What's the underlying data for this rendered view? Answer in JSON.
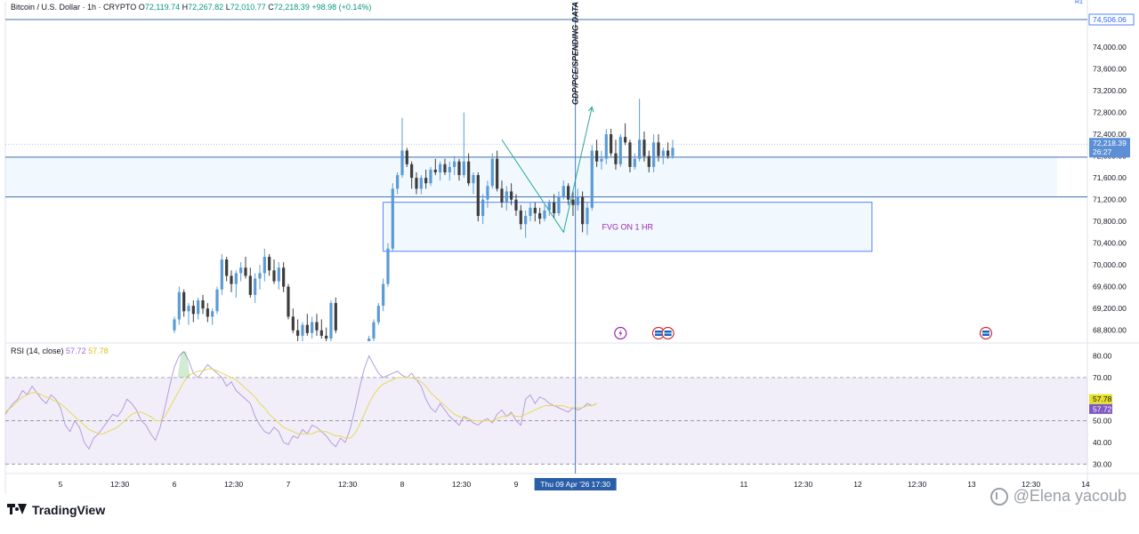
{
  "header": {
    "symbol": "Bitcoin / U.S. Dollar · 1h · CRYPTO",
    "o_label": "O",
    "o_value": "72,119.74",
    "h_label": "H",
    "h_value": "72,267.82",
    "l_label": "L",
    "l_value": "72,010.77",
    "c_label": "C",
    "c_value": "72,218.39",
    "change": "+98.98 (+0.14%)"
  },
  "rsi_legend": {
    "label": "RSI (14, close)",
    "rsi_value": "57.72",
    "ma_value": "57.78"
  },
  "brand": {
    "name": "TradingView"
  },
  "watermark": {
    "text": "@Elena yacoub"
  },
  "colors": {
    "up": "#5b9bd5",
    "down": "#3d3d3d",
    "line": "#2962ff",
    "rsi": "#b39ddb",
    "rsi_ma": "#f0e68c",
    "fvg_text": "#9c27b0",
    "badge": "#2962ff"
  },
  "chart_data": [
    {
      "type": "candlestick",
      "title": "Bitcoin / U.S. Dollar · 1h · CRYPTO",
      "ylim": [
        68600,
        74800
      ],
      "y_ticks": [
        "74,000.00",
        "73,600.00",
        "73,200.00",
        "72,800.00",
        "72,400.00",
        "72,000.00",
        "71,600.00",
        "71,200.00",
        "70,800.00",
        "70,400.00",
        "70,000.00",
        "69,600.00",
        "69,200.00",
        "68,800.00"
      ],
      "y_tick_values": [
        74000,
        73600,
        73200,
        72800,
        72400,
        72000,
        71600,
        71200,
        70800,
        70400,
        70000,
        69600,
        69200,
        68800
      ],
      "x_ticks": [
        "5",
        "12:30",
        "6",
        "12:30",
        "7",
        "12:30",
        "8",
        "12:30",
        "9",
        "12:30",
        "11",
        "12:30",
        "12",
        "12:30",
        "13",
        "12:30",
        "14"
      ],
      "x_tick_hours": [
        0,
        12.5,
        24,
        36.5,
        48,
        60.5,
        72,
        84.5,
        96,
        108.5,
        144,
        156.5,
        168,
        180.5,
        192,
        204.5,
        216
      ],
      "price_labels": [
        {
          "text": "74,506.06",
          "value": 74506.06
        },
        {
          "text": "72,218.39",
          "value": 72218.39
        },
        {
          "text": "26:27",
          "value": 72218.39
        }
      ],
      "hlines": [
        {
          "value": 74506.06,
          "style": "solid"
        },
        {
          "value": 72218.39,
          "style": "dotted"
        },
        {
          "value": 71980,
          "style": "solid"
        },
        {
          "value": 71250,
          "style": "solid"
        }
      ],
      "zones": [
        {
          "label": "",
          "from_hour": -12,
          "to_hour": 210,
          "low": 71250,
          "high": 71980
        },
        {
          "label": "FVG ON 1 HR",
          "from_hour": 68,
          "to_hour": 171,
          "low": 70250,
          "high": 71150
        }
      ],
      "annotations": [
        {
          "text": "GDP/PCE/SPENDING DATA",
          "hour": 108.5,
          "kind": "vertical-line"
        },
        {
          "text": "Thu 09 Apr '26   17:30",
          "hour": 108.5,
          "kind": "x-axis-highlight"
        },
        {
          "text": "R1",
          "kind": "corner"
        }
      ],
      "drawn_path": [
        {
          "hour": 93,
          "value": 72300
        },
        {
          "hour": 106,
          "value": 70600
        },
        {
          "hour": 112,
          "value": 72900
        }
      ],
      "event_badges": [
        {
          "hour": 118,
          "kind": "bolt"
        },
        {
          "hour": 126,
          "kind": "flag"
        },
        {
          "hour": 128,
          "kind": "flag"
        },
        {
          "hour": 195,
          "kind": "flag"
        }
      ],
      "candles": [
        [
          24,
          68800,
          69050,
          68750,
          69000
        ],
        [
          25,
          69000,
          69600,
          68900,
          69500
        ],
        [
          26,
          69500,
          69550,
          69050,
          69150
        ],
        [
          27,
          69150,
          69300,
          68900,
          69250
        ],
        [
          28,
          69250,
          69350,
          68950,
          69100
        ],
        [
          29,
          69100,
          69400,
          69000,
          69350
        ],
        [
          30,
          69350,
          69450,
          69100,
          69200
        ],
        [
          31,
          69200,
          69300,
          68950,
          69050
        ],
        [
          32,
          69050,
          69200,
          68900,
          69150
        ],
        [
          33,
          69150,
          69600,
          69100,
          69550
        ],
        [
          34,
          69550,
          70200,
          69450,
          70100
        ],
        [
          35,
          70100,
          70150,
          69700,
          69800
        ],
        [
          36,
          69800,
          69900,
          69500,
          69650
        ],
        [
          37,
          69650,
          69900,
          69400,
          69850
        ],
        [
          38,
          69850,
          70050,
          69700,
          69950
        ],
        [
          39,
          69950,
          70150,
          69750,
          69800
        ],
        [
          40,
          69800,
          69950,
          69400,
          69450
        ],
        [
          41,
          69450,
          69850,
          69300,
          69750
        ],
        [
          42,
          69750,
          70000,
          69550,
          69850
        ],
        [
          43,
          69850,
          70300,
          69700,
          70150
        ],
        [
          44,
          70150,
          70200,
          69800,
          69900
        ],
        [
          45,
          69900,
          70100,
          69650,
          69700
        ],
        [
          46,
          69700,
          70050,
          69550,
          69950
        ],
        [
          47,
          69950,
          70050,
          69500,
          69600
        ],
        [
          48,
          69600,
          69650,
          69000,
          69050
        ],
        [
          49,
          69050,
          69200,
          68750,
          68800
        ],
        [
          50,
          68800,
          69000,
          68600,
          68700
        ],
        [
          51,
          68700,
          68950,
          68600,
          68900
        ],
        [
          52,
          68900,
          69100,
          68700,
          68750
        ],
        [
          53,
          68750,
          69050,
          68650,
          68950
        ],
        [
          54,
          68950,
          69100,
          68700,
          68800
        ],
        [
          55,
          68800,
          69000,
          68650,
          68700
        ],
        [
          56,
          68700,
          68850,
          68600,
          68650
        ],
        [
          57,
          68650,
          69350,
          68600,
          69300
        ],
        [
          58,
          69300,
          69400,
          68750,
          68800
        ],
        [
          65,
          68600,
          68700,
          68600,
          68650
        ],
        [
          66,
          68650,
          69000,
          68600,
          68950
        ],
        [
          67,
          68950,
          69300,
          68900,
          69250
        ],
        [
          68,
          69250,
          69750,
          69150,
          69650
        ],
        [
          69,
          69650,
          70400,
          69600,
          70300
        ],
        [
          70,
          70300,
          71500,
          70250,
          71400
        ],
        [
          71,
          71400,
          71700,
          71300,
          71650
        ],
        [
          72,
          71650,
          72700,
          71600,
          72100
        ],
        [
          73,
          72100,
          72150,
          71800,
          71850
        ],
        [
          74,
          71850,
          71900,
          71400,
          71600
        ],
        [
          75,
          71600,
          71700,
          71300,
          71400
        ],
        [
          76,
          71400,
          71650,
          71300,
          71600
        ],
        [
          77,
          71600,
          71750,
          71400,
          71500
        ],
        [
          78,
          71500,
          71800,
          71450,
          71750
        ],
        [
          79,
          71750,
          71950,
          71650,
          71700
        ],
        [
          80,
          71700,
          71900,
          71550,
          71850
        ],
        [
          81,
          71850,
          71950,
          71650,
          71700
        ],
        [
          82,
          71700,
          71900,
          71550,
          71800
        ],
        [
          83,
          71800,
          72000,
          71650,
          71900
        ],
        [
          84,
          71900,
          71950,
          71550,
          71650
        ],
        [
          85,
          71650,
          72800,
          71600,
          71900
        ],
        [
          86,
          71900,
          72050,
          71450,
          71500
        ],
        [
          87,
          71500,
          71700,
          71300,
          71650
        ],
        [
          88,
          71650,
          71700,
          70800,
          70900
        ],
        [
          89,
          70900,
          71300,
          70750,
          71200
        ],
        [
          90,
          71200,
          71550,
          71050,
          71450
        ],
        [
          91,
          71450,
          72050,
          71400,
          71950
        ],
        [
          92,
          71950,
          72100,
          71350,
          71400
        ],
        [
          93,
          71400,
          71550,
          71050,
          71150
        ],
        [
          94,
          71150,
          71450,
          71000,
          71350
        ],
        [
          95,
          71350,
          71500,
          71100,
          71200
        ],
        [
          96,
          71200,
          71300,
          70900,
          71000
        ],
        [
          97,
          71000,
          71100,
          70650,
          70750
        ],
        [
          98,
          70750,
          71000,
          70500,
          70900
        ],
        [
          99,
          70900,
          71150,
          70800,
          71050
        ],
        [
          100,
          71050,
          71150,
          70800,
          70950
        ],
        [
          101,
          70950,
          71050,
          70750,
          70850
        ],
        [
          102,
          70850,
          71100,
          70800,
          71000
        ],
        [
          103,
          71000,
          71200,
          70900,
          71150
        ],
        [
          104,
          71150,
          71300,
          70850,
          70950
        ],
        [
          105,
          70950,
          71350,
          70900,
          71250
        ],
        [
          106,
          71250,
          71550,
          71200,
          71450
        ],
        [
          107,
          71450,
          71500,
          71100,
          71200
        ],
        [
          108,
          71200,
          71350,
          70900,
          71100
        ],
        [
          109,
          71100,
          71400,
          71000,
          71250
        ],
        [
          110,
          71250,
          71350,
          70600,
          70750
        ],
        [
          111,
          70750,
          71150,
          70550,
          71050
        ],
        [
          112,
          71050,
          72200,
          71000,
          72100
        ],
        [
          113,
          72100,
          72300,
          71800,
          71900
        ],
        [
          114,
          71900,
          72100,
          71750,
          71950
        ],
        [
          115,
          71950,
          72500,
          71850,
          72400
        ],
        [
          116,
          72400,
          72500,
          72000,
          72050
        ],
        [
          117,
          72050,
          72300,
          71750,
          71850
        ],
        [
          118,
          71850,
          72400,
          71800,
          72350
        ],
        [
          119,
          72350,
          72600,
          72200,
          72250
        ],
        [
          120,
          72250,
          72300,
          71700,
          71800
        ],
        [
          121,
          71800,
          72050,
          71750,
          71950
        ],
        [
          122,
          71950,
          73050,
          71900,
          72300
        ],
        [
          123,
          72300,
          72450,
          71900,
          72000
        ],
        [
          124,
          72000,
          72100,
          71700,
          71800
        ],
        [
          125,
          71800,
          72400,
          71700,
          72250
        ],
        [
          126,
          72250,
          72400,
          71900,
          72000
        ],
        [
          127,
          72000,
          72150,
          71850,
          72100
        ],
        [
          128,
          72100,
          72250,
          71950,
          72000
        ],
        [
          129,
          72000,
          72300,
          71950,
          72150
        ]
      ]
    },
    {
      "type": "line",
      "title": "RSI (14, close)",
      "ylim": [
        26,
        86
      ],
      "y_ticks": [
        "80.00",
        "70.00",
        "50.00",
        "40.00",
        "30.00"
      ],
      "y_tick_values": [
        80,
        70,
        50,
        40,
        30
      ],
      "value_labels": [
        {
          "text": "57.78",
          "value": 57.78
        },
        {
          "text": "57.72",
          "value": 57.72
        }
      ],
      "bands": {
        "upper": 70,
        "lower": 30,
        "mid": 50
      },
      "series": [
        {
          "name": "RSI",
          "color": "#b39ddb",
          "values": [
            52,
            55,
            58,
            60,
            64,
            62,
            66,
            63,
            60,
            58,
            62,
            60,
            56,
            48,
            45,
            50,
            47,
            40,
            37,
            42,
            44,
            47,
            50,
            53,
            52,
            55,
            60,
            58,
            55,
            50,
            48,
            44,
            41,
            47,
            56,
            66,
            75,
            80,
            82,
            78,
            72,
            70,
            73,
            76,
            74,
            72,
            70,
            66,
            68,
            64,
            62,
            60,
            58,
            52,
            48,
            45,
            44,
            47,
            45,
            40,
            39,
            43,
            42,
            46,
            44,
            48,
            47,
            45,
            43,
            40,
            38,
            42,
            40,
            46,
            55,
            65,
            74,
            80,
            76,
            72,
            70,
            71,
            72,
            73,
            71,
            70,
            72,
            69,
            66,
            60,
            56,
            54,
            58,
            55,
            52,
            50,
            48,
            52,
            51,
            49,
            48,
            50,
            51,
            49,
            53,
            55,
            52,
            54,
            50,
            48,
            60,
            62,
            58,
            61,
            60,
            58,
            57,
            56,
            55,
            54,
            56,
            55,
            56,
            58,
            57,
            58
          ]
        },
        {
          "name": "RSI MA",
          "color": "#e6d85a",
          "values": [
            54,
            55,
            57,
            59,
            61,
            62,
            63,
            63,
            62,
            61,
            60,
            59,
            58,
            56,
            54,
            52,
            50,
            48,
            46,
            45,
            44,
            44,
            45,
            46,
            47,
            49,
            51,
            53,
            54,
            54,
            53,
            52,
            50,
            50,
            52,
            56,
            60,
            64,
            68,
            71,
            72,
            73,
            73,
            74,
            74,
            73,
            72,
            71,
            70,
            69,
            67,
            65,
            63,
            61,
            58,
            56,
            53,
            51,
            49,
            47,
            46,
            45,
            44,
            44,
            44,
            44,
            45,
            45,
            45,
            44,
            43,
            43,
            42,
            42,
            44,
            48,
            53,
            58,
            62,
            65,
            67,
            68,
            69,
            70,
            70,
            70,
            70,
            69,
            68,
            66,
            63,
            61,
            59,
            57,
            55,
            53,
            52,
            51,
            51,
            50,
            50,
            50,
            50,
            50,
            51,
            52,
            52,
            53,
            52,
            52,
            53,
            54,
            55,
            56,
            57,
            57,
            57,
            57,
            57,
            56,
            56,
            56,
            56,
            57,
            57,
            58
          ]
        }
      ],
      "series_start_hour": 0
    }
  ]
}
